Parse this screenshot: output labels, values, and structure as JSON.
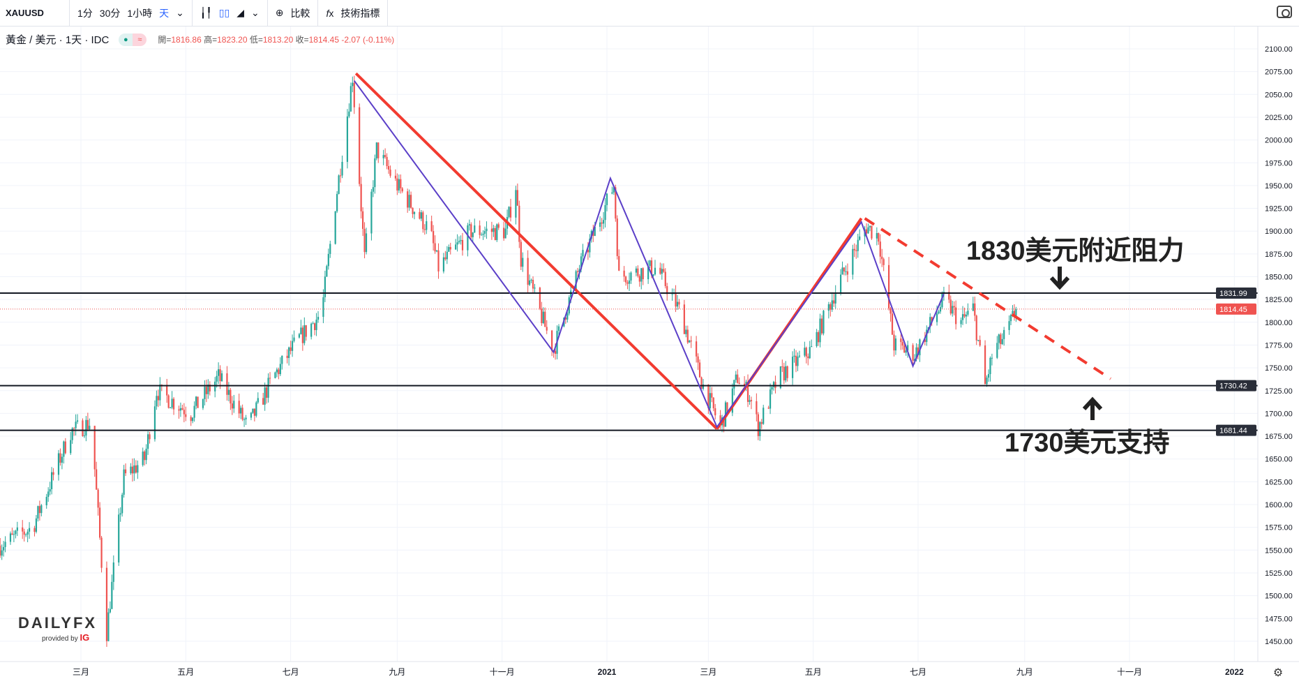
{
  "toolbar": {
    "symbol": "XAUUSD",
    "intervals": [
      "1分",
      "30分",
      "1小時",
      "天"
    ],
    "compare": "比較",
    "indicators": "技術指標"
  },
  "legend": {
    "title": "黃金 / 美元 · 1天 · IDC",
    "open_label": "開=",
    "open": "1816.86",
    "high_label": "高=",
    "high": "1823.20",
    "low_label": "低=",
    "low": "1813.20",
    "close_label": "收=",
    "close": "1814.45",
    "change": "-2.07 (-0.11%)"
  },
  "annotations": {
    "resistance": "1830美元附近阻力",
    "support": "1730美元支持"
  },
  "logo": {
    "brand": "DAILYFX",
    "provided": "provided by",
    "ig": "IG"
  },
  "colors": {
    "up": "#26a69a",
    "down": "#ef5350",
    "trend_red": "#f23b30",
    "trend_purple": "#5b3fc8",
    "level": "#131722"
  },
  "chart_data": {
    "type": "candlestick",
    "title": "黃金 / 美元 · 1天 · IDC",
    "ylim": [
      1425,
      2125
    ],
    "y_ticks": [
      2100,
      2075,
      2050,
      2025,
      2000,
      1975,
      1950,
      1925,
      1900,
      1875,
      1850,
      1825,
      1800,
      1775,
      1750,
      1725,
      1700,
      1675,
      1650,
      1625,
      1600,
      1575,
      1550,
      1525,
      1500,
      1475,
      1450
    ],
    "x_ticks": [
      {
        "label": "三月",
        "date": "2020-03-01"
      },
      {
        "label": "五月",
        "date": "2020-05-01"
      },
      {
        "label": "七月",
        "date": "2020-07-01"
      },
      {
        "label": "九月",
        "date": "2020-09-01"
      },
      {
        "label": "十一月",
        "date": "2020-11-01"
      },
      {
        "label": "2021",
        "date": "2021-01-01"
      },
      {
        "label": "三月",
        "date": "2021-03-01"
      },
      {
        "label": "五月",
        "date": "2021-05-01"
      },
      {
        "label": "七月",
        "date": "2021-07-01"
      },
      {
        "label": "九月",
        "date": "2021-09-01"
      },
      {
        "label": "十一月",
        "date": "2021-11-01"
      },
      {
        "label": "2022",
        "date": "2022-01-01"
      }
    ],
    "price_path": [
      [
        "2020-01-14",
        1555
      ],
      [
        "2020-02-02",
        1575
      ],
      [
        "2020-02-24",
        1680
      ],
      [
        "2020-03-07",
        1690
      ],
      [
        "2020-03-16",
        1460
      ],
      [
        "2020-03-26",
        1630
      ],
      [
        "2020-04-07",
        1650
      ],
      [
        "2020-04-14",
        1725
      ],
      [
        "2020-05-04",
        1700
      ],
      [
        "2020-05-20",
        1740
      ],
      [
        "2020-06-06",
        1685
      ],
      [
        "2020-06-21",
        1740
      ],
      [
        "2020-07-05",
        1780
      ],
      [
        "2020-07-19",
        1810
      ],
      [
        "2020-07-27",
        1930
      ],
      [
        "2020-08-06",
        2070
      ],
      [
        "2020-08-13",
        1870
      ],
      [
        "2020-08-20",
        1990
      ],
      [
        "2020-09-01",
        1950
      ],
      [
        "2020-09-20",
        1900
      ],
      [
        "2020-09-25",
        1860
      ],
      [
        "2020-10-14",
        1900
      ],
      [
        "2020-11-03",
        1900
      ],
      [
        "2020-11-09",
        1950
      ],
      [
        "2020-11-12",
        1870
      ],
      [
        "2020-11-27",
        1790
      ],
      [
        "2020-12-01",
        1770
      ],
      [
        "2020-12-16",
        1860
      ],
      [
        "2021-01-05",
        1950
      ],
      [
        "2021-01-08",
        1850
      ],
      [
        "2021-01-30",
        1860
      ],
      [
        "2021-02-13",
        1810
      ],
      [
        "2021-02-26",
        1730
      ],
      [
        "2021-03-08",
        1685
      ],
      [
        "2021-03-18",
        1740
      ],
      [
        "2021-03-25",
        1720
      ],
      [
        "2021-03-30",
        1685
      ],
      [
        "2021-04-11",
        1740
      ],
      [
        "2021-04-30",
        1770
      ],
      [
        "2021-05-15",
        1840
      ],
      [
        "2021-06-01",
        1905
      ],
      [
        "2021-06-08",
        1895
      ],
      [
        "2021-06-17",
        1775
      ],
      [
        "2021-06-29",
        1765
      ],
      [
        "2021-07-16",
        1825
      ],
      [
        "2021-07-26",
        1800
      ],
      [
        "2021-08-02",
        1815
      ],
      [
        "2021-08-09",
        1730
      ],
      [
        "2021-08-14",
        1770
      ],
      [
        "2021-08-21",
        1785
      ],
      [
        "2021-08-27",
        1814.45
      ]
    ],
    "levels": [
      {
        "price": 1831.99,
        "label": "1831.99"
      },
      {
        "price": 1730.42,
        "label": "1730.42"
      },
      {
        "price": 1681.44,
        "label": "1681.44"
      }
    ],
    "last_price": {
      "price": 1814.45,
      "label": "1814.45"
    },
    "trendlines": [
      {
        "color": "red",
        "dashed": false,
        "points": [
          [
            "2020-08-08",
            2073
          ],
          [
            "2021-03-06",
            1683
          ]
        ]
      },
      {
        "color": "red",
        "dashed": false,
        "points": [
          [
            "2021-03-06",
            1683
          ],
          [
            "2021-05-29",
            1914
          ]
        ]
      },
      {
        "color": "red",
        "dashed": true,
        "points": [
          [
            "2021-05-31",
            1914
          ],
          [
            "2021-10-21",
            1738
          ]
        ]
      },
      {
        "color": "purple",
        "dashed": false,
        "points": [
          [
            "2020-08-07",
            2065
          ],
          [
            "2020-12-01",
            1767
          ],
          [
            "2021-01-03",
            1958
          ],
          [
            "2021-03-06",
            1685
          ],
          [
            "2021-05-29",
            1910
          ],
          [
            "2021-06-28",
            1752
          ],
          [
            "2021-07-16",
            1831
          ]
        ]
      }
    ]
  }
}
